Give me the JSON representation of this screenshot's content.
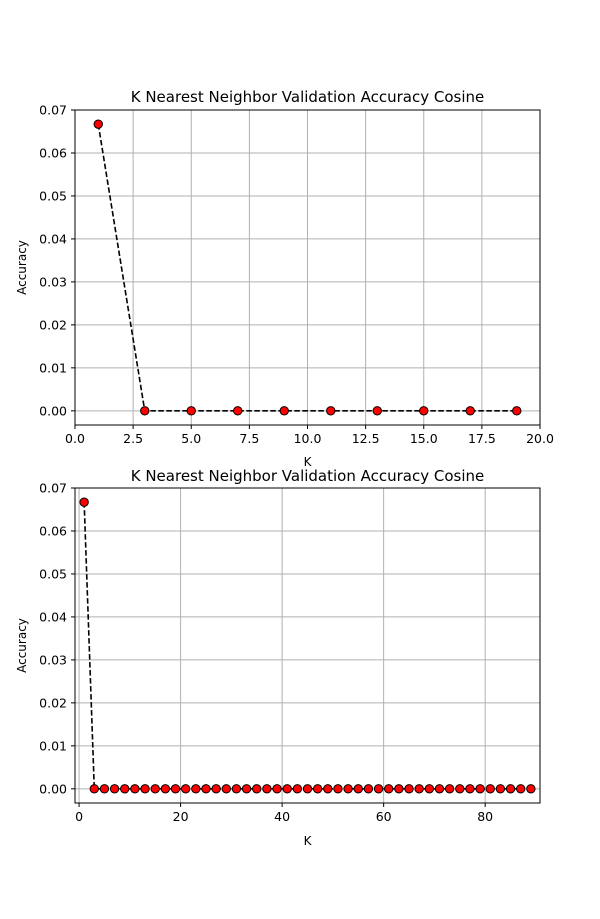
{
  "chart_data": [
    {
      "type": "line",
      "title": "K Nearest Neighbor Validation Accuracy Cosine",
      "xlabel": "K",
      "ylabel": "Accuracy",
      "xlim": [
        0,
        20
      ],
      "ylim": [
        -0.0033,
        0.07
      ],
      "xticks": [
        0,
        2.5,
        5,
        7.5,
        10,
        12.5,
        15,
        17.5,
        20
      ],
      "xtick_labels": [
        "0.0",
        "2.5",
        "5.0",
        "7.5",
        "10.0",
        "12.5",
        "15.0",
        "17.5",
        "20.0"
      ],
      "yticks": [
        0,
        0.01,
        0.02,
        0.03,
        0.04,
        0.05,
        0.06,
        0.07
      ],
      "ytick_labels": [
        "0.00",
        "0.01",
        "0.02",
        "0.03",
        "0.04",
        "0.05",
        "0.06",
        "0.07"
      ],
      "grid": true,
      "line_color": "#000000",
      "marker_color": "#ff0000",
      "x": [
        1,
        3,
        5,
        7,
        9,
        11,
        13,
        15,
        17,
        19
      ],
      "y": [
        0.0667,
        0,
        0,
        0,
        0,
        0,
        0,
        0,
        0,
        0
      ]
    },
    {
      "type": "line",
      "title": "K Nearest Neighbor Validation Accuracy Cosine",
      "xlabel": "K",
      "ylabel": "Accuracy",
      "xlim": [
        -0.8,
        90.8
      ],
      "ylim": [
        -0.0033,
        0.07
      ],
      "xticks": [
        0,
        20,
        40,
        60,
        80
      ],
      "xtick_labels": [
        "0",
        "20",
        "40",
        "60",
        "80"
      ],
      "yticks": [
        0,
        0.01,
        0.02,
        0.03,
        0.04,
        0.05,
        0.06,
        0.07
      ],
      "ytick_labels": [
        "0.00",
        "0.01",
        "0.02",
        "0.03",
        "0.04",
        "0.05",
        "0.06",
        "0.07"
      ],
      "grid": true,
      "line_color": "#000000",
      "marker_color": "#ff0000",
      "x": [
        1,
        3,
        5,
        7,
        9,
        11,
        13,
        15,
        17,
        19,
        21,
        23,
        25,
        27,
        29,
        31,
        33,
        35,
        37,
        39,
        41,
        43,
        45,
        47,
        49,
        51,
        53,
        55,
        57,
        59,
        61,
        63,
        65,
        67,
        69,
        71,
        73,
        75,
        77,
        79,
        81,
        83,
        85,
        87,
        89
      ],
      "y": [
        0.0667,
        0,
        0,
        0,
        0,
        0,
        0,
        0,
        0,
        0,
        0,
        0,
        0,
        0,
        0,
        0,
        0,
        0,
        0,
        0,
        0,
        0,
        0,
        0,
        0,
        0,
        0,
        0,
        0,
        0,
        0,
        0,
        0,
        0,
        0,
        0,
        0,
        0,
        0,
        0,
        0,
        0,
        0,
        0,
        0
      ]
    }
  ]
}
